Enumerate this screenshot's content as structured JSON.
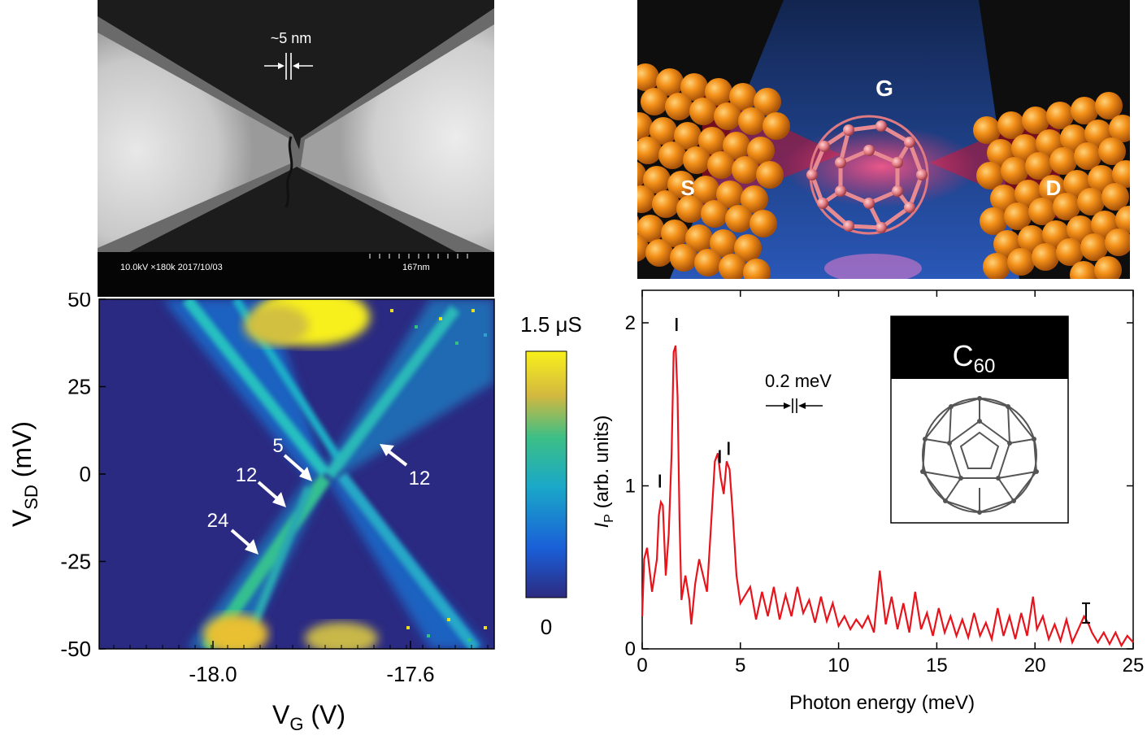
{
  "sem": {
    "gap_label": "~5 nm",
    "info_text": "10.0kV ×180k 2017/10/03",
    "scale_text": "167nm"
  },
  "schematic": {
    "labels": [
      "S",
      "G",
      "D"
    ],
    "colors": {
      "electrode": "#f08a12",
      "molecule": "#e07a82",
      "gate": "#1f3e8c"
    }
  },
  "conductance_map": {
    "y_label_main": "V",
    "y_label_sub": "SD",
    "y_label_unit": " (mV)",
    "x_label_main": "V",
    "x_label_sub": "G",
    "x_label_unit": " (V)",
    "y_ticks": [
      "50",
      "25",
      "0",
      "-25",
      "-50"
    ],
    "x_ticks": [
      "-18.0",
      "-17.6"
    ],
    "colorbar_max": "1.5 μS",
    "colorbar_min": "0",
    "arrow_labels": [
      "5",
      "12",
      "24",
      "12"
    ],
    "colors": {
      "background": "#2a2a80",
      "high": "#f5e61c"
    }
  },
  "chart_data": {
    "type": "line",
    "xlabel": "Photon energy (meV)",
    "ylabel_main": "I",
    "ylabel_sub": "P",
    "ylabel_unit": " (arb. units)",
    "xlim": [
      0,
      25
    ],
    "ylim": [
      0,
      2
    ],
    "x_ticks": [
      "0",
      "5",
      "10",
      "15",
      "20",
      "25"
    ],
    "y_ticks": [
      "0",
      "1",
      "2"
    ],
    "resolution_label": "0.2 meV",
    "inset_title_main": "C",
    "inset_title_sub": "60",
    "series_color": "#e8141c",
    "x": [
      0,
      0.1,
      0.25,
      0.5,
      0.75,
      0.85,
      0.95,
      1.05,
      1.2,
      1.35,
      1.5,
      1.6,
      1.7,
      1.8,
      1.9,
      2.0,
      2.2,
      2.4,
      2.5,
      2.7,
      2.9,
      3.1,
      3.3,
      3.5,
      3.7,
      3.85,
      4.0,
      4.15,
      4.3,
      4.45,
      4.6,
      4.8,
      5.0,
      5.2,
      5.5,
      5.8,
      6.1,
      6.4,
      6.7,
      7.0,
      7.3,
      7.6,
      7.9,
      8.2,
      8.5,
      8.8,
      9.1,
      9.4,
      9.7,
      10.0,
      10.3,
      10.6,
      10.9,
      11.2,
      11.5,
      11.8,
      12.1,
      12.4,
      12.7,
      13.0,
      13.3,
      13.6,
      13.9,
      14.2,
      14.5,
      14.8,
      15.1,
      15.4,
      15.7,
      16.0,
      16.3,
      16.6,
      16.9,
      17.2,
      17.5,
      17.8,
      18.1,
      18.4,
      18.7,
      19.0,
      19.3,
      19.6,
      19.9,
      20.1,
      20.4,
      20.7,
      21.0,
      21.3,
      21.6,
      21.9,
      22.2,
      22.5,
      22.7,
      22.9,
      23.2,
      23.5,
      23.8,
      24.1,
      24.4,
      24.7,
      25.0
    ],
    "y": [
      0.2,
      0.55,
      0.62,
      0.35,
      0.55,
      0.82,
      0.9,
      0.88,
      0.45,
      0.7,
      1.2,
      1.82,
      1.86,
      1.55,
      0.8,
      0.3,
      0.45,
      0.3,
      0.15,
      0.4,
      0.55,
      0.45,
      0.35,
      0.75,
      1.15,
      1.2,
      1.05,
      0.95,
      1.15,
      1.1,
      0.85,
      0.45,
      0.28,
      0.32,
      0.38,
      0.18,
      0.35,
      0.2,
      0.38,
      0.18,
      0.33,
      0.2,
      0.38,
      0.22,
      0.3,
      0.16,
      0.32,
      0.17,
      0.28,
      0.14,
      0.2,
      0.12,
      0.18,
      0.13,
      0.2,
      0.1,
      0.48,
      0.15,
      0.32,
      0.12,
      0.28,
      0.1,
      0.35,
      0.12,
      0.22,
      0.08,
      0.25,
      0.1,
      0.2,
      0.08,
      0.18,
      0.07,
      0.22,
      0.08,
      0.16,
      0.06,
      0.25,
      0.08,
      0.2,
      0.06,
      0.22,
      0.08,
      0.32,
      0.12,
      0.2,
      0.06,
      0.15,
      0.05,
      0.18,
      0.04,
      0.12,
      0.2,
      0.16,
      0.1,
      0.04,
      0.1,
      0.03,
      0.1,
      0.02,
      0.08,
      0.04
    ],
    "peak_markers_x": [
      0.9,
      1.75,
      3.95,
      4.4
    ],
    "error_bar": {
      "x": 22.6,
      "y": 0.22,
      "half_height": 0.06
    }
  }
}
